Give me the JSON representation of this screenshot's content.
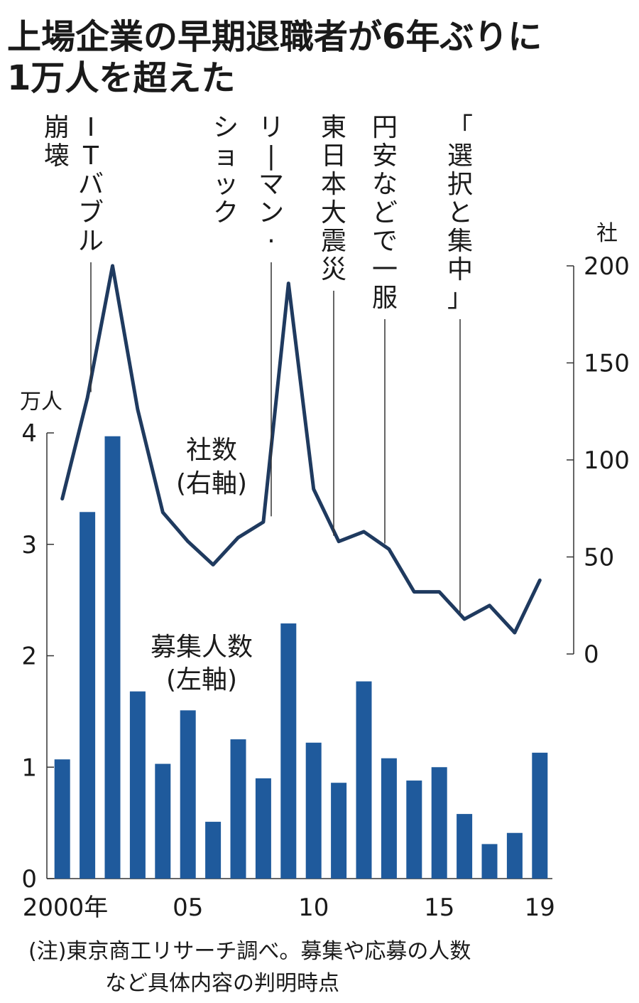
{
  "chart_data": {
    "type": "bar+line",
    "title": [
      "上場企業の早期退職者が6年ぶりに",
      "1万人を超えた"
    ],
    "x": [
      2000,
      2001,
      2002,
      2003,
      2004,
      2005,
      2006,
      2007,
      2008,
      2009,
      2010,
      2011,
      2012,
      2013,
      2014,
      2015,
      2016,
      2017,
      2018,
      2019
    ],
    "x_tick_labels": [
      {
        "x": 2000,
        "label": "2000年"
      },
      {
        "x": 2005,
        "label": "05"
      },
      {
        "x": 2010,
        "label": "10"
      },
      {
        "x": 2015,
        "label": "15"
      },
      {
        "x": 2019,
        "label": "19"
      }
    ],
    "series": [
      {
        "name": "募集人数",
        "axis_label": "(左軸)",
        "type": "bar",
        "axis": "left",
        "unit": "万人",
        "color": "#1f5a9c",
        "values": [
          1.07,
          3.29,
          3.97,
          1.68,
          1.03,
          1.51,
          0.51,
          1.25,
          0.9,
          2.29,
          1.22,
          0.86,
          1.77,
          1.08,
          0.88,
          1.0,
          0.58,
          0.31,
          0.41,
          1.13
        ]
      },
      {
        "name": "社数",
        "axis_label": "(右軸)",
        "type": "line",
        "axis": "right",
        "unit": "社",
        "color": "#1f3a5f",
        "values": [
          80,
          132,
          200,
          126,
          73,
          58,
          46,
          60,
          68,
          191,
          85,
          58,
          63,
          54,
          32,
          32,
          18,
          25,
          11,
          38
        ]
      }
    ],
    "y_left": {
      "unit": "万人",
      "ylim": [
        0,
        4
      ],
      "ticks": [
        0,
        1,
        2,
        3,
        4
      ]
    },
    "y_right": {
      "unit": "社",
      "ylim": [
        0,
        200
      ],
      "ticks": [
        0,
        50,
        100,
        150,
        200
      ]
    },
    "annotations": [
      {
        "x": 2001,
        "y": 148,
        "lines": [
          "ITバブル",
          "崩壊"
        ]
      },
      {
        "x": 2008,
        "y": 110,
        "lines": [
          "リーマン・",
          "ショック"
        ]
      },
      {
        "x": 2011,
        "y": 60,
        "lines": [
          "東日本大震災"
        ]
      },
      {
        "x": 2013,
        "y": 60,
        "lines": [
          "円安などで一服"
        ]
      },
      {
        "x": 2016,
        "y": 20,
        "lines": [
          "「選択と集中」"
        ]
      }
    ],
    "note": [
      "(注)東京商工リサーチ調べ。募集や応募の人数",
      "など具体内容の判明時点"
    ],
    "legend": "none",
    "grid": false
  }
}
